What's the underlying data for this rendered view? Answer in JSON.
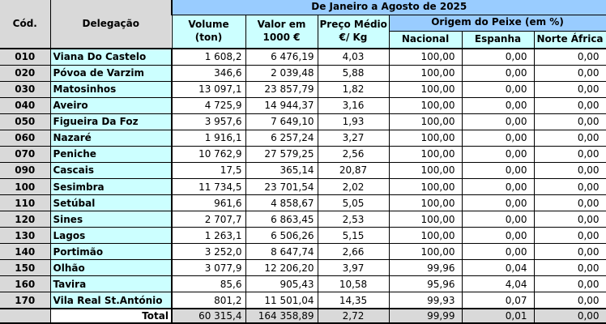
{
  "header": {
    "cod": "Cód.",
    "delegacao": "Delegação",
    "period": "De Janeiro a Agosto de 2025",
    "volume_line1": "Volume",
    "volume_line2": "(ton)",
    "valor_line1": "Valor em",
    "valor_line2": "1000 €",
    "preco_line1": "Preço Médio",
    "preco_line2": "€/ Kg",
    "origem": "Origem do Peixe (em %)",
    "nacional": "Nacional",
    "espanha": "Espanha",
    "norte_africa": "Norte África"
  },
  "colors": {
    "band_blue": "#99ccff",
    "pale_cyan": "#ccffff",
    "gray": "#d9d9d9",
    "border": "#000000",
    "text": "#000000"
  },
  "chart_data": {
    "type": "table",
    "title": "De Janeiro a Agosto de 2025",
    "column_groups": [
      "De Janeiro a Agosto de 2025",
      "Origem do Peixe (em %)"
    ],
    "columns": [
      "Cód.",
      "Delegação",
      "Volume (ton)",
      "Valor em 1000 €",
      "Preço Médio €/ Kg",
      "Nacional",
      "Espanha",
      "Norte África"
    ],
    "rows": [
      [
        "010",
        "Viana Do Castelo",
        "1 608,2",
        "6 476,19",
        "4,03",
        "100,00",
        "0,00",
        "0,00"
      ],
      [
        "020",
        "Póvoa de Varzim",
        "346,6",
        "2 039,48",
        "5,88",
        "100,00",
        "0,00",
        "0,00"
      ],
      [
        "030",
        "Matosinhos",
        "13 097,1",
        "23 857,79",
        "1,82",
        "100,00",
        "0,00",
        "0,00"
      ],
      [
        "040",
        "Aveiro",
        "4 725,9",
        "14 944,37",
        "3,16",
        "100,00",
        "0,00",
        "0,00"
      ],
      [
        "050",
        "Figueira Da Foz",
        "3 957,6",
        "7 649,10",
        "1,93",
        "100,00",
        "0,00",
        "0,00"
      ],
      [
        "060",
        "Nazaré",
        "1 916,1",
        "6 257,24",
        "3,27",
        "100,00",
        "0,00",
        "0,00"
      ],
      [
        "070",
        "Peniche",
        "10 762,9",
        "27 579,25",
        "2,56",
        "100,00",
        "0,00",
        "0,00"
      ],
      [
        "090",
        "Cascais",
        "17,5",
        "365,14",
        "20,87",
        "100,00",
        "0,00",
        "0,00"
      ],
      [
        "100",
        "Sesimbra",
        "11 734,5",
        "23 701,54",
        "2,02",
        "100,00",
        "0,00",
        "0,00"
      ],
      [
        "110",
        "Setúbal",
        "961,6",
        "4 858,67",
        "5,05",
        "100,00",
        "0,00",
        "0,00"
      ],
      [
        "120",
        "Sines",
        "2 707,7",
        "6 863,45",
        "2,53",
        "100,00",
        "0,00",
        "0,00"
      ],
      [
        "130",
        "Lagos",
        "1 263,1",
        "6 506,26",
        "5,15",
        "100,00",
        "0,00",
        "0,00"
      ],
      [
        "140",
        "Portimão",
        "3 252,0",
        "8 647,74",
        "2,66",
        "100,00",
        "0,00",
        "0,00"
      ],
      [
        "150",
        "Olhão",
        "3 077,9",
        "12 206,20",
        "3,97",
        "99,96",
        "0,04",
        "0,00"
      ],
      [
        "160",
        "Tavira",
        "85,6",
        "905,43",
        "10,58",
        "95,96",
        "4,04",
        "0,00"
      ],
      [
        "170",
        "Vila Real St.António",
        "801,2",
        "11 501,04",
        "14,35",
        "99,93",
        "0,07",
        "0,00"
      ]
    ],
    "total_row": [
      "",
      "Total",
      "60 315,4",
      "164 358,89",
      "2,72",
      "99,99",
      "0,01",
      "0,00"
    ]
  }
}
